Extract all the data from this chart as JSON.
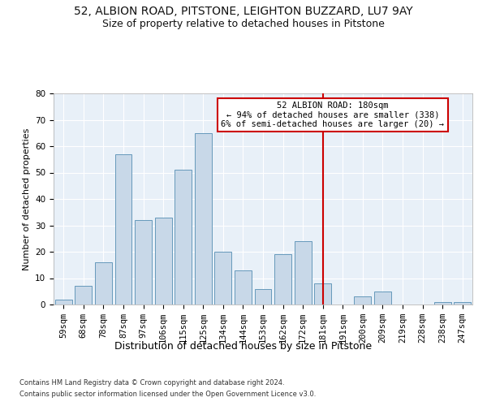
{
  "title1": "52, ALBION ROAD, PITSTONE, LEIGHTON BUZZARD, LU7 9AY",
  "title2": "Size of property relative to detached houses in Pitstone",
  "xlabel": "Distribution of detached houses by size in Pitstone",
  "ylabel": "Number of detached properties",
  "categories": [
    "59sqm",
    "68sqm",
    "78sqm",
    "87sqm",
    "97sqm",
    "106sqm",
    "115sqm",
    "125sqm",
    "134sqm",
    "144sqm",
    "153sqm",
    "162sqm",
    "172sqm",
    "181sqm",
    "191sqm",
    "200sqm",
    "209sqm",
    "219sqm",
    "228sqm",
    "238sqm",
    "247sqm"
  ],
  "values": [
    2,
    7,
    16,
    57,
    32,
    33,
    51,
    65,
    20,
    13,
    6,
    19,
    24,
    8,
    0,
    3,
    5,
    0,
    0,
    1,
    1
  ],
  "bar_color": "#c8d8e8",
  "bar_edge_color": "#6699bb",
  "highlight_color": "#cc0000",
  "annotation_text": "52 ALBION ROAD: 180sqm\n← 94% of detached houses are smaller (338)\n6% of semi-detached houses are larger (20) →",
  "annotation_box_color": "#ffffff",
  "annotation_edge_color": "#cc0000",
  "ylim": [
    0,
    80
  ],
  "yticks": [
    0,
    10,
    20,
    30,
    40,
    50,
    60,
    70,
    80
  ],
  "background_color": "#e8f0f8",
  "footer1": "Contains HM Land Registry data © Crown copyright and database right 2024.",
  "footer2": "Contains public sector information licensed under the Open Government Licence v3.0.",
  "title1_fontsize": 10,
  "title2_fontsize": 9,
  "xlabel_fontsize": 9,
  "ylabel_fontsize": 8,
  "tick_fontsize": 7.5,
  "footer_fontsize": 6,
  "annot_fontsize": 7.5
}
